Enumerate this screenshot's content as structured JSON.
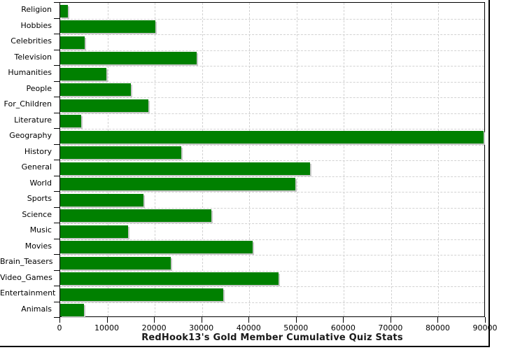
{
  "chart_data": {
    "type": "bar",
    "orientation": "horizontal",
    "title": "RedHook13's Gold Member Cumulative Quiz Stats",
    "categories": [
      "Religion",
      "Hobbies",
      "Celebrities",
      "Television",
      "Humanities",
      "People",
      "For_Children",
      "Literature",
      "Geography",
      "History",
      "General",
      "World",
      "Sports",
      "Science",
      "Music",
      "Movies",
      "Brain_Teasers",
      "Video_Games",
      "Entertainment",
      "Animals"
    ],
    "values": [
      1600,
      20100,
      5200,
      28800,
      9800,
      14900,
      18600,
      4400,
      89600,
      25600,
      52800,
      49700,
      17600,
      31900,
      14400,
      40700,
      23400,
      46200,
      34500,
      5100
    ],
    "xlim": [
      0,
      90000
    ],
    "x_ticks": [
      0,
      10000,
      20000,
      30000,
      40000,
      50000,
      60000,
      70000,
      80000,
      90000
    ],
    "x_tick_labels": [
      "0",
      "10000",
      "20000",
      "30000",
      "40000",
      "50000",
      "60000",
      "70000",
      "80000",
      "90000"
    ],
    "grid": true,
    "legend": "none",
    "bar_color": "#008000",
    "grid_color": "#d2d2d2",
    "axis_color": "#000000",
    "background": "#ffffff"
  }
}
